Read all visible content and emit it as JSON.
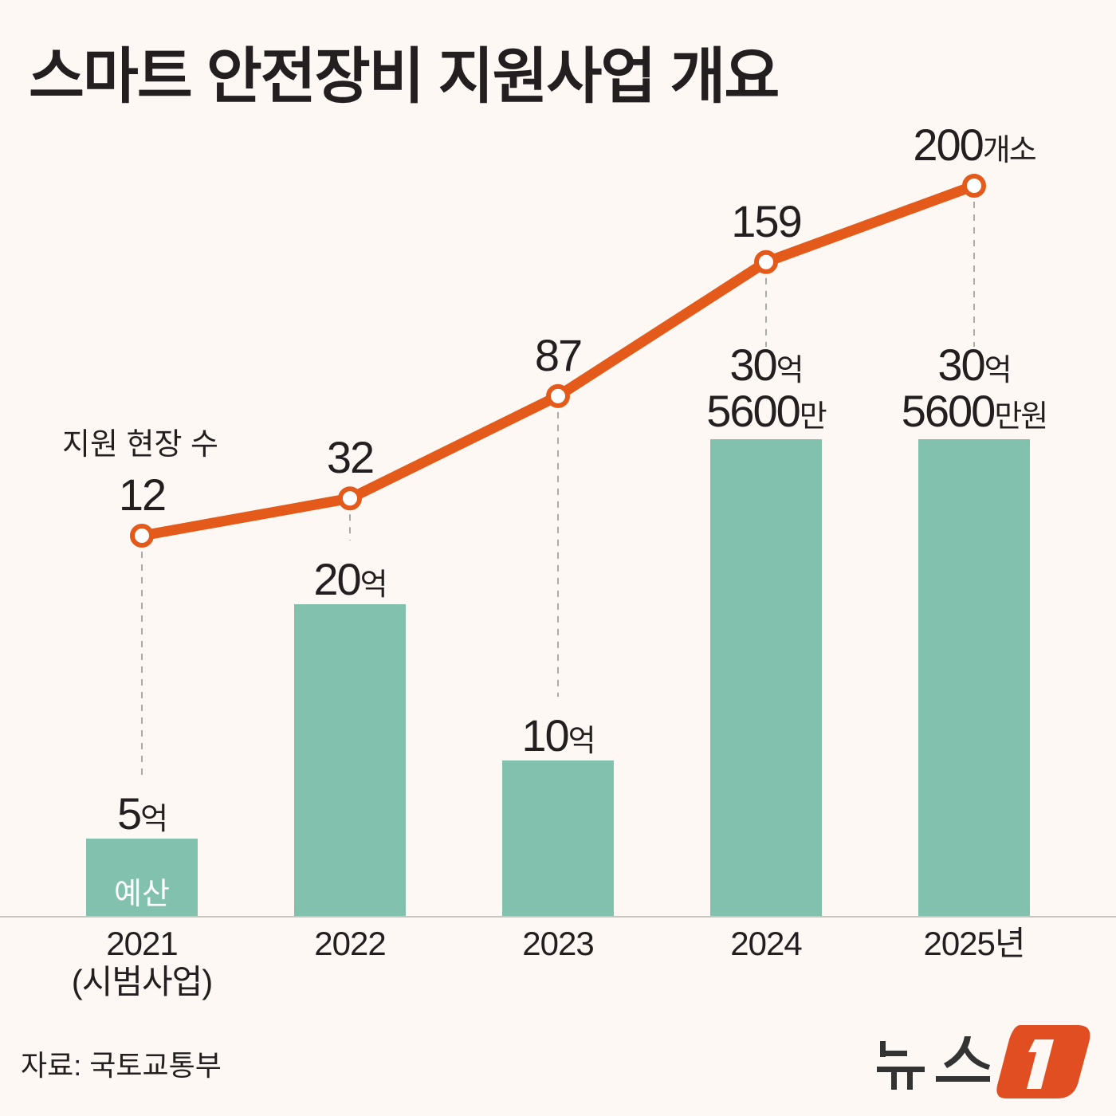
{
  "title": "스마트 안전장비 지원사업 개요",
  "source": "자료: 국토교통부",
  "logo_text": "뉴스1",
  "chart_data": {
    "type": "bar+line",
    "categories": [
      "2021",
      "2022",
      "2023",
      "2024",
      "2025"
    ],
    "category_labels": [
      {
        "year": "2021",
        "sub": "(시범사업)"
      },
      {
        "year": "2022",
        "sub": ""
      },
      {
        "year": "2023",
        "sub": ""
      },
      {
        "year": "2024",
        "sub": ""
      },
      {
        "year": "2025년",
        "sub": ""
      }
    ],
    "bar_series": {
      "name": "예산",
      "unit": "억원",
      "values": [
        5,
        20,
        10,
        30.56,
        30.56
      ],
      "labels": [
        {
          "num": "5",
          "unit": "억",
          "num2": "",
          "unit2": ""
        },
        {
          "num": "20",
          "unit": "억",
          "num2": "",
          "unit2": ""
        },
        {
          "num": "10",
          "unit": "억",
          "num2": "",
          "unit2": ""
        },
        {
          "num": "30",
          "unit": "억",
          "num2": "5600",
          "unit2": "만"
        },
        {
          "num": "30",
          "unit": "억",
          "num2": "5600",
          "unit2": "만원"
        }
      ],
      "color": "#82c1ae"
    },
    "line_series": {
      "name": "지원 현장 수",
      "values": [
        12,
        32,
        87,
        159,
        200
      ],
      "labels": [
        {
          "num": "12",
          "unit": ""
        },
        {
          "num": "32",
          "unit": ""
        },
        {
          "num": "87",
          "unit": ""
        },
        {
          "num": "159",
          "unit": ""
        },
        {
          "num": "200",
          "unit": "개소"
        }
      ],
      "color": "#e35a1a"
    }
  },
  "colors": {
    "background": "#fdf8f4",
    "bar": "#82c1ae",
    "line": "#e35a1a",
    "logo": "#e04e22"
  }
}
